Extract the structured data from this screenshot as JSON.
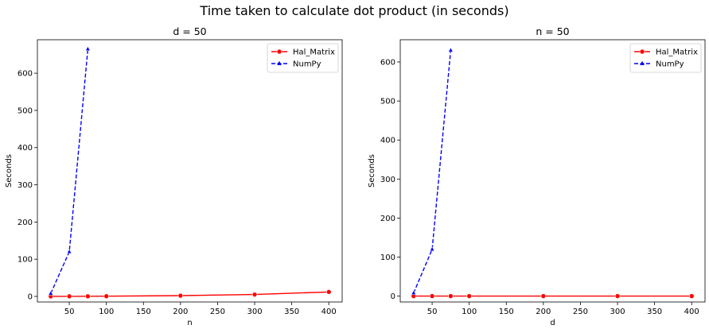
{
  "figure": {
    "suptitle": "Time taken to calculate dot product (in seconds)"
  },
  "chart_data": [
    {
      "type": "line",
      "title": "d = 50",
      "xlabel": "n",
      "ylabel": "Seconds",
      "xlim": [
        7,
        418
      ],
      "ylim": [
        -15,
        690
      ],
      "xticks": [
        50,
        100,
        150,
        200,
        250,
        300,
        350,
        400
      ],
      "yticks": [
        0,
        100,
        200,
        300,
        400,
        500,
        600
      ],
      "legend": "top-right",
      "series": [
        {
          "name": "Hal_Matrix",
          "color": "#ff0000",
          "linestyle": "solid",
          "marker": "circle",
          "x": [
            25,
            50,
            75,
            100,
            200,
            300,
            400
          ],
          "y": [
            0.1,
            0.2,
            0.3,
            0.5,
            2.0,
            5.0,
            12.0
          ]
        },
        {
          "name": "NumPy",
          "color": "#0000ff",
          "linestyle": "dashed",
          "marker": "triangle",
          "x": [
            25,
            50,
            75
          ],
          "y": [
            8,
            120,
            665
          ]
        }
      ]
    },
    {
      "type": "line",
      "title": "n = 50",
      "xlabel": "d",
      "ylabel": "Seconds",
      "xlim": [
        7,
        418
      ],
      "ylim": [
        -15,
        657
      ],
      "xticks": [
        50,
        100,
        150,
        200,
        250,
        300,
        350,
        400
      ],
      "yticks": [
        0,
        100,
        200,
        300,
        400,
        500,
        600
      ],
      "legend": "top-right",
      "series": [
        {
          "name": "Hal_Matrix",
          "color": "#ff0000",
          "linestyle": "solid",
          "marker": "circle",
          "x": [
            25,
            50,
            75,
            100,
            200,
            300,
            400
          ],
          "y": [
            0.1,
            0.1,
            0.1,
            0.1,
            0.1,
            0.1,
            0.1
          ]
        },
        {
          "name": "NumPy",
          "color": "#0000ff",
          "linestyle": "dashed",
          "marker": "triangle",
          "x": [
            25,
            50,
            75
          ],
          "y": [
            8,
            120,
            630
          ]
        }
      ]
    }
  ]
}
